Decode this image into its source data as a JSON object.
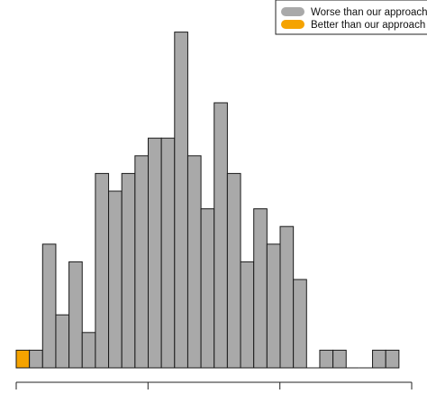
{
  "chart_data": {
    "type": "bar",
    "bar_counts": [
      1,
      1,
      7,
      3,
      6,
      2,
      11,
      10,
      11,
      12,
      13,
      13,
      19,
      12,
      9,
      15,
      11,
      6,
      9,
      7,
      8,
      5,
      0,
      1,
      1,
      0,
      0,
      1,
      1
    ],
    "highlight_counts": [
      1,
      0,
      0,
      0,
      0,
      0,
      0,
      0,
      0,
      0,
      0,
      0,
      0,
      0,
      0,
      0,
      0,
      0,
      0,
      0,
      0,
      0,
      0,
      0,
      0,
      0,
      0,
      0,
      0
    ],
    "series": [
      {
        "name": "Worse than our approach",
        "color": "#a9a9a9"
      },
      {
        "name": "Better than our approach",
        "color": "#f5a300"
      }
    ],
    "legend_position": "top-right",
    "grid": false
  }
}
